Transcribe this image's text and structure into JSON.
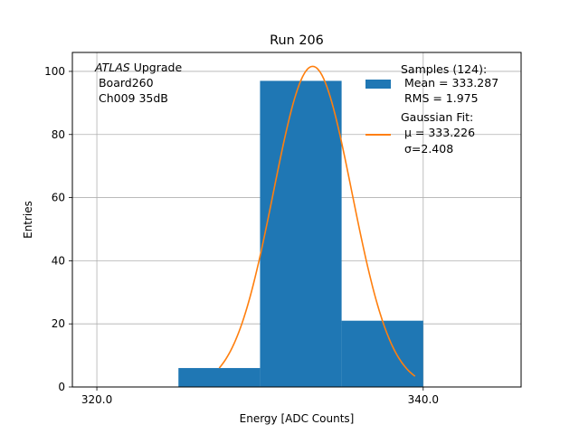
{
  "chart_data": {
    "type": "bar",
    "title": "Run 206",
    "xlabel": "Energy [ADC Counts]",
    "ylabel": "Entries",
    "xlim": [
      318.5,
      346.0
    ],
    "ylim": [
      0,
      106
    ],
    "grid": true,
    "x_ticks": [
      320.0,
      340.0
    ],
    "x_tick_labels": [
      "320.0",
      "340.0"
    ],
    "y_ticks": [
      0,
      20,
      40,
      60,
      80,
      100
    ],
    "y_tick_labels": [
      "0",
      "20",
      "40",
      "60",
      "80",
      "100"
    ],
    "histogram": {
      "name": "Samples",
      "bins": [
        {
          "start": 325,
          "end": 330,
          "count": 6
        },
        {
          "start": 330,
          "end": 335,
          "count": 97
        },
        {
          "start": 335,
          "end": 340,
          "count": 21
        }
      ],
      "color": "#1f77b4"
    },
    "fit": {
      "name": "Gaussian Fit",
      "mu": 333.226,
      "sigma": 2.408,
      "peak": 101.6,
      "x_range": [
        327.5,
        339.5
      ],
      "color": "#ff7f0e"
    },
    "annotation": {
      "italic": "ATLAS",
      "rest": " Upgrade",
      "line2": " Board260",
      "line3": " Ch009 35dB"
    },
    "legend": {
      "location": "top-right",
      "hist_lines": [
        "Samples (124):",
        " Mean = 333.287",
        " RMS = 1.975"
      ],
      "fit_lines": [
        "Gaussian Fit:",
        " μ = 333.226",
        " σ=2.408"
      ]
    }
  }
}
